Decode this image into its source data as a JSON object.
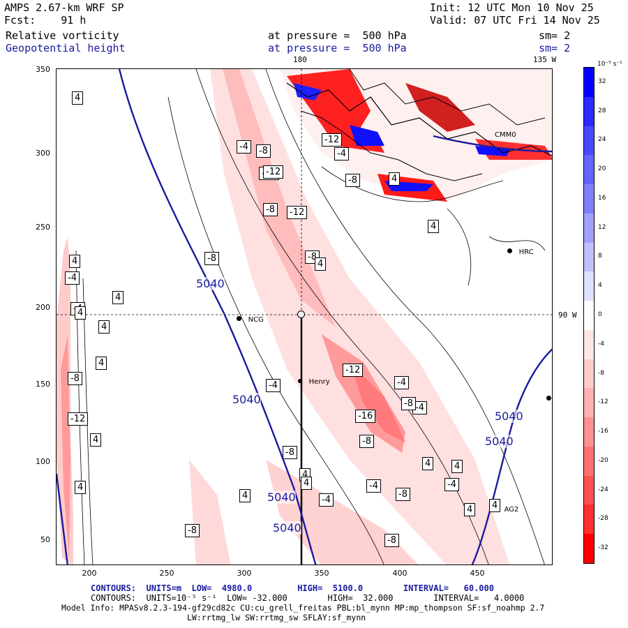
{
  "header": {
    "model": "AMPS 2.67-km WRF SP",
    "init": "Init: 12 UTC Mon 10 Nov 25",
    "fcst": "Fcst:    91 h",
    "valid": "Valid: 07 UTC Fri 14 Nov 25",
    "field1": "Relative vorticity",
    "field1_level": "at pressure =  500 hPa",
    "field1_sm": "sm= 2",
    "field2": "Geopotential height",
    "field2_level": "at pressure =  500 hPa",
    "field2_sm": "sm= 2"
  },
  "map_labels": {
    "lon_180": "180",
    "lon_135w": "135 W",
    "lon_90w": "90 W"
  },
  "axes": {
    "y_ticks": [
      "350",
      "300",
      "250",
      "200",
      "150",
      "100",
      "50"
    ],
    "x_ticks": [
      "200",
      "250",
      "300",
      "350",
      "400",
      "450"
    ]
  },
  "stations": [
    {
      "name": "NCG"
    },
    {
      "name": "Henry"
    },
    {
      "name": "HRC"
    },
    {
      "name": "AG2"
    },
    {
      "name": "CMM0"
    }
  ],
  "contour_labels": {
    "height": [
      "5040",
      "5040",
      "5040",
      "5040",
      "5040",
      "5040"
    ],
    "vorticity": [
      "4",
      "-4",
      "4",
      "4",
      "-4",
      "4",
      "4",
      "-8",
      "4",
      "-12",
      "4",
      "4",
      "-12",
      "-8",
      "-4",
      "-8",
      "-12",
      "-12",
      "-8",
      "-8",
      "-4",
      "4",
      "-12",
      "4",
      "-8",
      "-12",
      "-16",
      "-8",
      "-4",
      "-4",
      "-4",
      "-4",
      "-8",
      "-4",
      "-8",
      "-8",
      "4",
      "4",
      "4",
      "4",
      "4",
      "-4",
      "4",
      "-8",
      "-8",
      "4",
      "4"
    ]
  },
  "colorbar": {
    "unit": "10⁻⁵ s⁻¹",
    "labels": [
      "32",
      "28",
      "24",
      "20",
      "16",
      "12",
      "8",
      "4",
      "0",
      "-4",
      "-8",
      "-12",
      "-16",
      "-20",
      "-24",
      "-28",
      "-32"
    ],
    "colors": [
      "#0000ff",
      "#2a2aff",
      "#4848ff",
      "#6464ff",
      "#8080ff",
      "#a0a0ff",
      "#c0c0ff",
      "#e0e0ff",
      "#ffffff",
      "#ffe6e6",
      "#ffcccc",
      "#ffb0b0",
      "#ff9090",
      "#ff7070",
      "#ff5050",
      "#ff3030",
      "#ff0000"
    ]
  },
  "footer": {
    "contours1": "CONTOURS:  UNITS=m  LOW=  4980.0         HIGH=  5100.0        INTERVAL=   60.000",
    "contours2": "CONTOURS:  UNITS=10⁻⁵ s⁻¹  LOW= -32.000        HIGH=  32.000        INTERVAL=   4.0000",
    "model_info": "Model Info: MPASv8.2.3-194-gf29cd82c CU:cu_grell_freitas PBL:bl_mynn MP:mp_thompson SF:sf_noahmp 2.7",
    "model_info2": "LW:rrtmg_lw SW:rrtmg_sw SFLAY:sf_mynn"
  }
}
